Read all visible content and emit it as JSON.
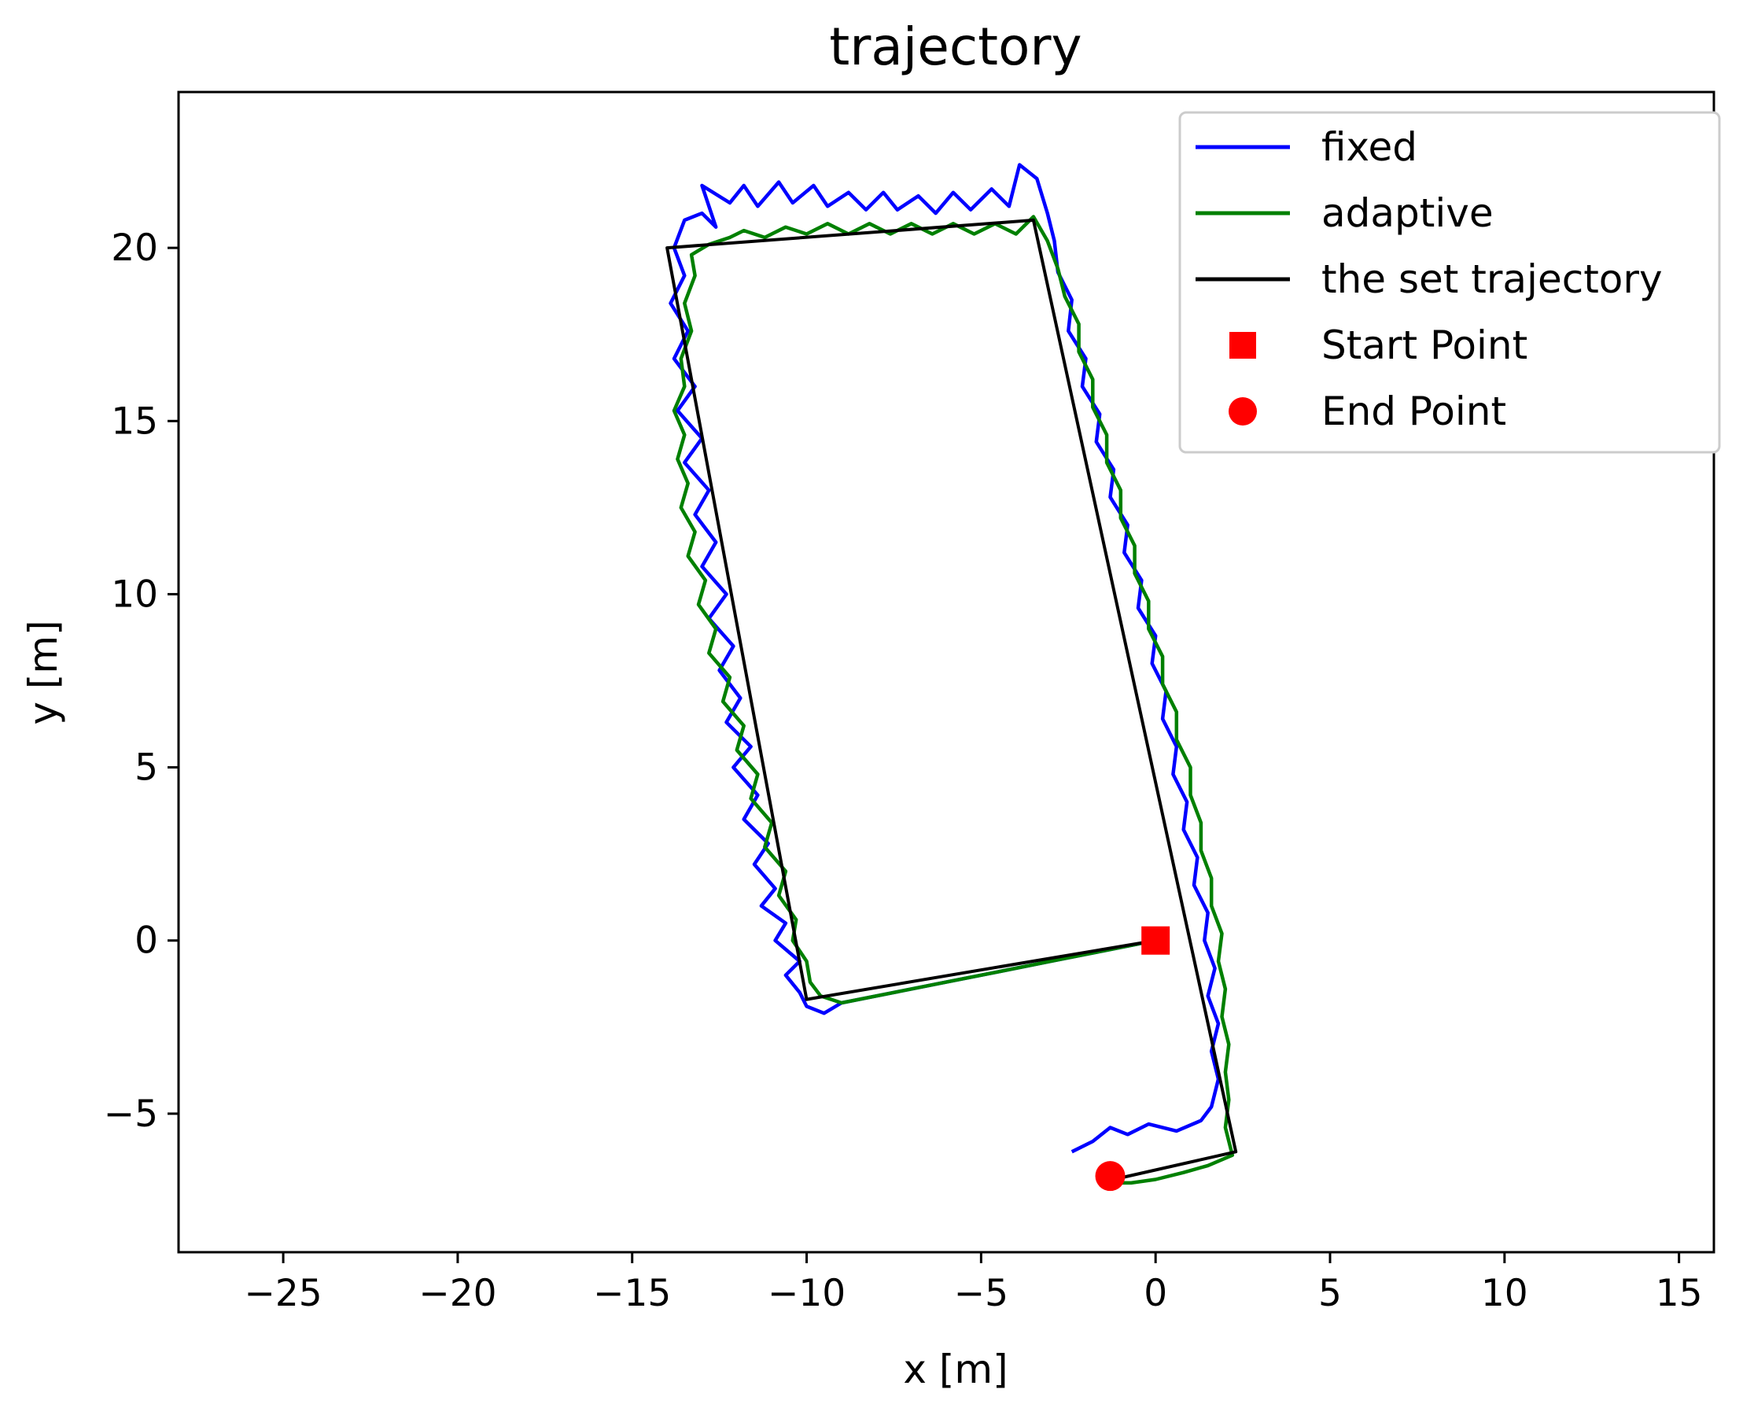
{
  "chart_data": {
    "type": "line",
    "title": "trajectory",
    "xlabel": "x [m]",
    "ylabel": "y [m]",
    "xlim": [
      -28,
      16
    ],
    "ylim": [
      -9,
      24.5
    ],
    "xticks": [
      -25,
      -20,
      -15,
      -10,
      -5,
      0,
      5,
      10,
      15
    ],
    "yticks": [
      -5,
      0,
      5,
      10,
      15,
      20
    ],
    "xtick_labels": [
      "−25",
      "−20",
      "−15",
      "−10",
      "−5",
      "0",
      "5",
      "10",
      "15"
    ],
    "ytick_labels": [
      "−5",
      "0",
      "5",
      "10",
      "15",
      "20"
    ],
    "grid": false,
    "legend_position": "top-right",
    "series": [
      {
        "name": "fixed",
        "color": "#0000ff",
        "points": [
          [
            0,
            0
          ],
          [
            -1.5,
            -0.3
          ],
          [
            -3,
            -0.6
          ],
          [
            -4.5,
            -0.9
          ],
          [
            -6,
            -1.2
          ],
          [
            -7.5,
            -1.5
          ],
          [
            -9,
            -1.8
          ],
          [
            -9.5,
            -2.1
          ],
          [
            -10,
            -1.9
          ],
          [
            -10.2,
            -1.5
          ],
          [
            -10.6,
            -1.0
          ],
          [
            -10.2,
            -0.6
          ],
          [
            -10.9,
            0
          ],
          [
            -10.6,
            0.5
          ],
          [
            -11.3,
            1.0
          ],
          [
            -10.9,
            1.5
          ],
          [
            -11.5,
            2.2
          ],
          [
            -11.1,
            2.8
          ],
          [
            -11.8,
            3.5
          ],
          [
            -11.4,
            4.2
          ],
          [
            -12.1,
            5.0
          ],
          [
            -11.6,
            5.6
          ],
          [
            -12.3,
            6.3
          ],
          [
            -11.9,
            7.0
          ],
          [
            -12.5,
            7.8
          ],
          [
            -12.1,
            8.5
          ],
          [
            -12.8,
            9.3
          ],
          [
            -12.3,
            10.0
          ],
          [
            -13.0,
            10.8
          ],
          [
            -12.6,
            11.5
          ],
          [
            -13.2,
            12.3
          ],
          [
            -12.8,
            13.0
          ],
          [
            -13.5,
            13.8
          ],
          [
            -13.0,
            14.5
          ],
          [
            -13.7,
            15.3
          ],
          [
            -13.2,
            16.0
          ],
          [
            -13.8,
            16.8
          ],
          [
            -13.4,
            17.6
          ],
          [
            -13.9,
            18.4
          ],
          [
            -13.5,
            19.2
          ],
          [
            -13.8,
            20.0
          ],
          [
            -13.5,
            20.8
          ],
          [
            -13.0,
            21.0
          ],
          [
            -12.6,
            20.6
          ],
          [
            -13.0,
            21.8
          ],
          [
            -12.2,
            21.3
          ],
          [
            -11.8,
            21.8
          ],
          [
            -11.4,
            21.2
          ],
          [
            -10.8,
            21.9
          ],
          [
            -10.4,
            21.3
          ],
          [
            -9.8,
            21.8
          ],
          [
            -9.4,
            21.2
          ],
          [
            -8.8,
            21.6
          ],
          [
            -8.3,
            21.1
          ],
          [
            -7.8,
            21.6
          ],
          [
            -7.4,
            21.1
          ],
          [
            -6.8,
            21.5
          ],
          [
            -6.3,
            21.0
          ],
          [
            -5.8,
            21.6
          ],
          [
            -5.3,
            21.1
          ],
          [
            -4.7,
            21.7
          ],
          [
            -4.2,
            21.2
          ],
          [
            -3.9,
            22.4
          ],
          [
            -3.4,
            22.0
          ],
          [
            -3.1,
            21.0
          ],
          [
            -2.9,
            20.2
          ],
          [
            -2.8,
            19.3
          ],
          [
            -2.4,
            18.5
          ],
          [
            -2.5,
            17.6
          ],
          [
            -2.0,
            16.8
          ],
          [
            -2.1,
            16.0
          ],
          [
            -1.6,
            15.2
          ],
          [
            -1.7,
            14.4
          ],
          [
            -1.2,
            13.6
          ],
          [
            -1.3,
            12.8
          ],
          [
            -0.8,
            12.0
          ],
          [
            -0.9,
            11.2
          ],
          [
            -0.4,
            10.4
          ],
          [
            -0.5,
            9.6
          ],
          [
            0,
            8.8
          ],
          [
            -0.1,
            8.0
          ],
          [
            0.3,
            7.2
          ],
          [
            0.2,
            6.4
          ],
          [
            0.6,
            5.6
          ],
          [
            0.5,
            4.8
          ],
          [
            0.9,
            4.0
          ],
          [
            0.8,
            3.2
          ],
          [
            1.2,
            2.4
          ],
          [
            1.1,
            1.6
          ],
          [
            1.5,
            0.8
          ],
          [
            1.4,
            0
          ],
          [
            1.7,
            -0.8
          ],
          [
            1.5,
            -1.6
          ],
          [
            1.8,
            -2.4
          ],
          [
            1.6,
            -3.2
          ],
          [
            1.8,
            -4.0
          ],
          [
            1.6,
            -4.8
          ],
          [
            1.3,
            -5.2
          ],
          [
            0.6,
            -5.5
          ],
          [
            -0.2,
            -5.3
          ],
          [
            -0.8,
            -5.6
          ],
          [
            -1.3,
            -5.4
          ],
          [
            -1.8,
            -5.8
          ],
          [
            -2.4,
            -6.1
          ]
        ]
      },
      {
        "name": "adaptive",
        "color": "#008000",
        "points": [
          [
            0,
            0
          ],
          [
            -1.5,
            -0.3
          ],
          [
            -3,
            -0.6
          ],
          [
            -4.5,
            -0.9
          ],
          [
            -6,
            -1.2
          ],
          [
            -7.5,
            -1.5
          ],
          [
            -9,
            -1.8
          ],
          [
            -9.6,
            -1.6
          ],
          [
            -9.9,
            -1.2
          ],
          [
            -10.0,
            -0.6
          ],
          [
            -10.4,
            0
          ],
          [
            -10.3,
            0.6
          ],
          [
            -10.8,
            1.3
          ],
          [
            -10.6,
            2.0
          ],
          [
            -11.2,
            2.7
          ],
          [
            -11.0,
            3.4
          ],
          [
            -11.6,
            4.1
          ],
          [
            -11.4,
            4.8
          ],
          [
            -12.0,
            5.5
          ],
          [
            -11.8,
            6.2
          ],
          [
            -12.4,
            6.9
          ],
          [
            -12.2,
            7.6
          ],
          [
            -12.8,
            8.3
          ],
          [
            -12.6,
            9.0
          ],
          [
            -13.1,
            9.7
          ],
          [
            -12.9,
            10.4
          ],
          [
            -13.4,
            11.1
          ],
          [
            -13.2,
            11.8
          ],
          [
            -13.6,
            12.5
          ],
          [
            -13.4,
            13.2
          ],
          [
            -13.7,
            13.9
          ],
          [
            -13.5,
            14.6
          ],
          [
            -13.8,
            15.3
          ],
          [
            -13.5,
            16.0
          ],
          [
            -13.6,
            16.8
          ],
          [
            -13.3,
            17.6
          ],
          [
            -13.5,
            18.4
          ],
          [
            -13.2,
            19.2
          ],
          [
            -13.3,
            19.8
          ],
          [
            -12.8,
            20.1
          ],
          [
            -12.2,
            20.3
          ],
          [
            -11.8,
            20.5
          ],
          [
            -11.2,
            20.3
          ],
          [
            -10.6,
            20.6
          ],
          [
            -10.0,
            20.4
          ],
          [
            -9.4,
            20.7
          ],
          [
            -8.8,
            20.4
          ],
          [
            -8.2,
            20.7
          ],
          [
            -7.6,
            20.4
          ],
          [
            -7.0,
            20.7
          ],
          [
            -6.4,
            20.4
          ],
          [
            -5.8,
            20.7
          ],
          [
            -5.2,
            20.4
          ],
          [
            -4.6,
            20.7
          ],
          [
            -4.0,
            20.4
          ],
          [
            -3.5,
            20.9
          ],
          [
            -3.1,
            20.2
          ],
          [
            -2.8,
            19.4
          ],
          [
            -2.6,
            18.6
          ],
          [
            -2.2,
            17.8
          ],
          [
            -2.2,
            17.0
          ],
          [
            -1.8,
            16.2
          ],
          [
            -1.8,
            15.4
          ],
          [
            -1.4,
            14.6
          ],
          [
            -1.4,
            13.8
          ],
          [
            -1.0,
            13.0
          ],
          [
            -1.0,
            12.2
          ],
          [
            -0.6,
            11.4
          ],
          [
            -0.6,
            10.6
          ],
          [
            -0.2,
            9.8
          ],
          [
            -0.2,
            9.0
          ],
          [
            0.2,
            8.2
          ],
          [
            0.2,
            7.4
          ],
          [
            0.6,
            6.6
          ],
          [
            0.6,
            5.8
          ],
          [
            1.0,
            5.0
          ],
          [
            1.0,
            4.2
          ],
          [
            1.3,
            3.4
          ],
          [
            1.3,
            2.6
          ],
          [
            1.6,
            1.8
          ],
          [
            1.6,
            1.0
          ],
          [
            1.9,
            0.2
          ],
          [
            1.8,
            -0.6
          ],
          [
            2.0,
            -1.4
          ],
          [
            1.9,
            -2.2
          ],
          [
            2.1,
            -3.0
          ],
          [
            2.0,
            -3.8
          ],
          [
            2.1,
            -4.6
          ],
          [
            2.0,
            -5.4
          ],
          [
            2.2,
            -6.2
          ],
          [
            1.5,
            -6.5
          ],
          [
            0.8,
            -6.7
          ],
          [
            0,
            -6.9
          ],
          [
            -0.7,
            -7.0
          ],
          [
            -1.2,
            -7.0
          ]
        ]
      },
      {
        "name": "the set trajectory",
        "color": "#000000",
        "points": [
          [
            0,
            0
          ],
          [
            -10,
            -1.7
          ],
          [
            -14,
            20
          ],
          [
            -3.5,
            20.8
          ],
          [
            2.3,
            -6.1
          ],
          [
            -1.2,
            -6.9
          ]
        ]
      }
    ],
    "markers": [
      {
        "name": "Start Point",
        "shape": "square",
        "color": "#ff0000",
        "x": 0,
        "y": 0
      },
      {
        "name": "End Point",
        "shape": "circle",
        "color": "#ff0000",
        "x": -1.3,
        "y": -6.8
      }
    ]
  }
}
